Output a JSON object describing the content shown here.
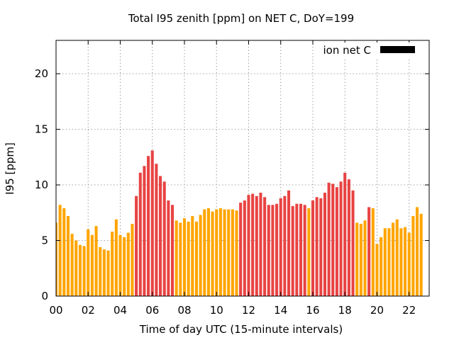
{
  "chart_data": {
    "type": "bar",
    "title": "Total I95 zenith [ppm] on NET C, DoY=199",
    "xlabel": "Time of day UTC (15-minute intervals)",
    "ylabel": "I95 [ppm]",
    "xlim": [
      0,
      23.25
    ],
    "ylim": [
      0,
      23
    ],
    "x_ticks": [
      0,
      2,
      4,
      6,
      8,
      10,
      12,
      14,
      16,
      18,
      20,
      22
    ],
    "x_tick_labels": [
      "00",
      "02",
      "04",
      "06",
      "08",
      "10",
      "12",
      "14",
      "16",
      "18",
      "20",
      "22"
    ],
    "y_ticks": [
      0,
      5,
      10,
      15,
      20
    ],
    "y_tick_labels": [
      "0",
      "5",
      "10",
      "15",
      "20"
    ],
    "grid": true,
    "legend": {
      "label": "ion net C",
      "placement": "top-right",
      "color": "#000000"
    },
    "bar_width_hours": 0.18,
    "colors": {
      "O": "#FFA500",
      "R": "#E84343"
    },
    "series": [
      {
        "x": [
          0,
          0.25,
          0.5,
          0.75,
          1,
          1.25,
          1.5,
          1.75,
          2,
          2.25,
          2.5,
          2.75,
          3,
          3.25,
          3.5,
          3.75,
          4,
          4.25,
          4.5,
          4.75,
          5,
          5.25,
          5.5,
          5.75,
          6,
          6.25,
          6.5,
          6.75,
          7,
          7.25,
          7.5,
          7.75,
          8,
          8.25,
          8.5,
          8.75,
          9,
          9.25,
          9.5,
          9.75,
          10,
          10.25,
          10.5,
          10.75,
          11,
          11.25,
          11.5,
          11.75,
          12,
          12.25,
          12.5,
          12.75,
          13,
          13.25,
          13.5,
          13.75,
          14,
          14.25,
          14.5,
          14.75,
          15,
          15.25,
          15.5,
          15.75,
          16,
          16.25,
          16.5,
          16.75,
          17,
          17.25,
          17.5,
          17.75,
          18,
          18.25,
          18.5,
          18.75,
          19,
          19.25,
          19.5,
          19.75,
          20,
          20.25,
          20.5,
          20.75,
          21,
          21.25,
          21.5,
          21.75,
          22,
          22.25,
          22.5,
          22.75
        ],
        "values": [
          6.6,
          8.2,
          7.9,
          7.2,
          5.6,
          5.0,
          4.6,
          4.5,
          6.0,
          5.5,
          6.3,
          4.4,
          4.2,
          4.1,
          5.8,
          6.9,
          5.5,
          5.3,
          5.7,
          6.5,
          9.0,
          11.1,
          11.7,
          12.6,
          13.1,
          11.9,
          10.8,
          10.3,
          8.6,
          8.2,
          6.8,
          6.6,
          7.0,
          6.7,
          7.2,
          6.7,
          7.3,
          7.8,
          7.9,
          7.6,
          7.8,
          7.9,
          7.8,
          7.8,
          7.8,
          7.7,
          8.4,
          8.6,
          9.1,
          9.2,
          9.0,
          9.3,
          8.9,
          8.2,
          8.2,
          8.3,
          8.8,
          9.0,
          9.5,
          8.1,
          8.3,
          8.3,
          8.2,
          7.9,
          8.6,
          8.9,
          8.8,
          9.3,
          10.2,
          10.1,
          9.8,
          10.3,
          11.1,
          10.5,
          9.5,
          6.6,
          6.5,
          6.8,
          8.0,
          7.9,
          4.7,
          5.3,
          6.1,
          6.1,
          6.6,
          6.9,
          6.1,
          6.2,
          5.7,
          7.2,
          8.0,
          7.4
        ],
        "color_codes": [
          "O",
          "O",
          "O",
          "O",
          "O",
          "O",
          "O",
          "O",
          "O",
          "O",
          "O",
          "O",
          "O",
          "O",
          "O",
          "O",
          "O",
          "O",
          "O",
          "O",
          "R",
          "R",
          "R",
          "R",
          "R",
          "R",
          "R",
          "R",
          "R",
          "R",
          "O",
          "O",
          "O",
          "O",
          "O",
          "O",
          "O",
          "O",
          "O",
          "O",
          "O",
          "O",
          "O",
          "O",
          "O",
          "O",
          "R",
          "R",
          "R",
          "R",
          "R",
          "R",
          "R",
          "R",
          "R",
          "R",
          "R",
          "R",
          "R",
          "R",
          "R",
          "R",
          "R",
          "O",
          "R",
          "R",
          "R",
          "R",
          "R",
          "R",
          "R",
          "R",
          "R",
          "R",
          "R",
          "O",
          "O",
          "O",
          "R",
          "O",
          "O",
          "O",
          "O",
          "O",
          "O",
          "O",
          "O",
          "O",
          "O",
          "O",
          "O",
          "O"
        ]
      }
    ]
  }
}
